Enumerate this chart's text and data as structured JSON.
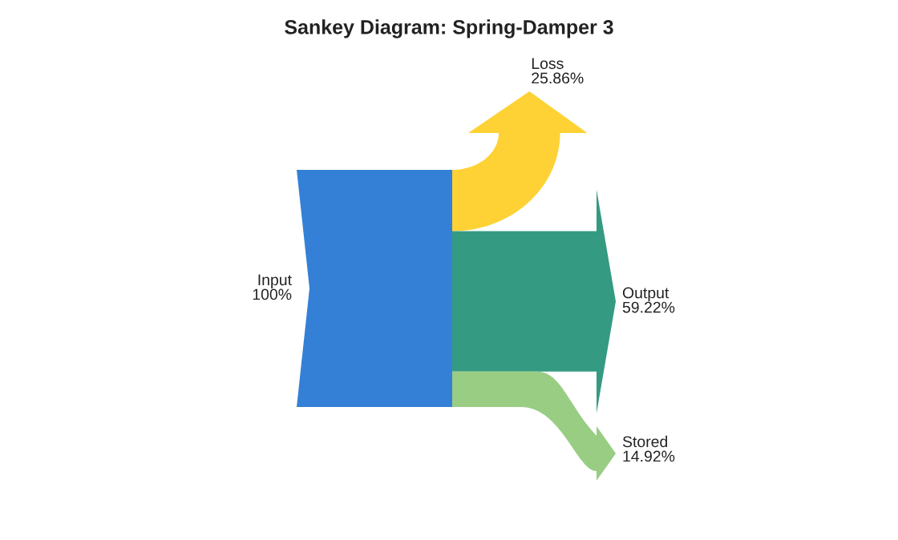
{
  "chart_data": {
    "type": "other",
    "title": "Sankey Diagram: Spring-Damper 3",
    "categories": [
      "Input",
      "Loss",
      "Output",
      "Stored"
    ],
    "values": [
      100,
      25.86,
      59.22,
      14.92
    ],
    "value_labels": [
      "100%",
      "25.86%",
      "59.22%",
      "14.92%"
    ],
    "colors": [
      "#3480d6",
      "#fed234",
      "#359a82",
      "#9acd84"
    ]
  }
}
